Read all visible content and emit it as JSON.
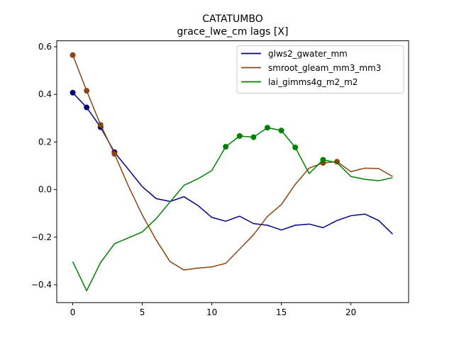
{
  "chart_data": {
    "type": "line",
    "title": "CATATUMBO",
    "subtitle": "grace_lwe_cm lags [X]",
    "xlabel": "",
    "ylabel": "",
    "xlim": [
      -1.15,
      24.15
    ],
    "ylim": [
      -0.475,
      0.625
    ],
    "xticks": [
      0,
      5,
      10,
      15,
      20
    ],
    "yticks": [
      -0.4,
      -0.2,
      0.0,
      0.2,
      0.4,
      0.6
    ],
    "ytick_labels": [
      "−0.4",
      "−0.2",
      "0.0",
      "0.2",
      "0.4",
      "0.6"
    ],
    "grid": false,
    "legend_position": "top-right",
    "x": [
      0,
      1,
      2,
      3,
      4,
      5,
      6,
      7,
      8,
      9,
      10,
      11,
      12,
      13,
      14,
      15,
      16,
      17,
      18,
      19,
      20,
      21,
      22,
      23
    ],
    "series": [
      {
        "name": "glws2_gwater_mm",
        "color": "#000080",
        "values": [
          0.407,
          0.345,
          0.262,
          0.157,
          0.085,
          0.012,
          -0.038,
          -0.05,
          -0.03,
          -0.067,
          -0.117,
          -0.133,
          -0.112,
          -0.143,
          -0.15,
          -0.17,
          -0.15,
          -0.145,
          -0.16,
          -0.13,
          -0.11,
          -0.103,
          -0.13,
          -0.187
        ],
        "markers": [
          0,
          1,
          2,
          3
        ]
      },
      {
        "name": "smroot_gleam_mm3_mm3",
        "color": "#8B4513",
        "values": [
          0.565,
          0.415,
          0.272,
          0.15,
          0.015,
          -0.107,
          -0.212,
          -0.303,
          -0.338,
          -0.33,
          -0.325,
          -0.31,
          -0.25,
          -0.19,
          -0.113,
          -0.063,
          0.022,
          0.09,
          0.112,
          0.117,
          0.075,
          0.09,
          0.088,
          0.055
        ],
        "markers": [
          0,
          1,
          2,
          3,
          18,
          19
        ]
      },
      {
        "name": "lai_gimms4g_m2_m2",
        "color": "#008000",
        "values": [
          -0.303,
          -0.425,
          -0.307,
          -0.228,
          -0.203,
          -0.178,
          -0.122,
          -0.052,
          0.018,
          0.045,
          0.08,
          0.18,
          0.225,
          0.22,
          0.26,
          0.248,
          0.177,
          0.067,
          0.125,
          0.113,
          0.055,
          0.043,
          0.037,
          0.05
        ],
        "markers": [
          11,
          12,
          13,
          14,
          15,
          16,
          18
        ]
      }
    ]
  }
}
